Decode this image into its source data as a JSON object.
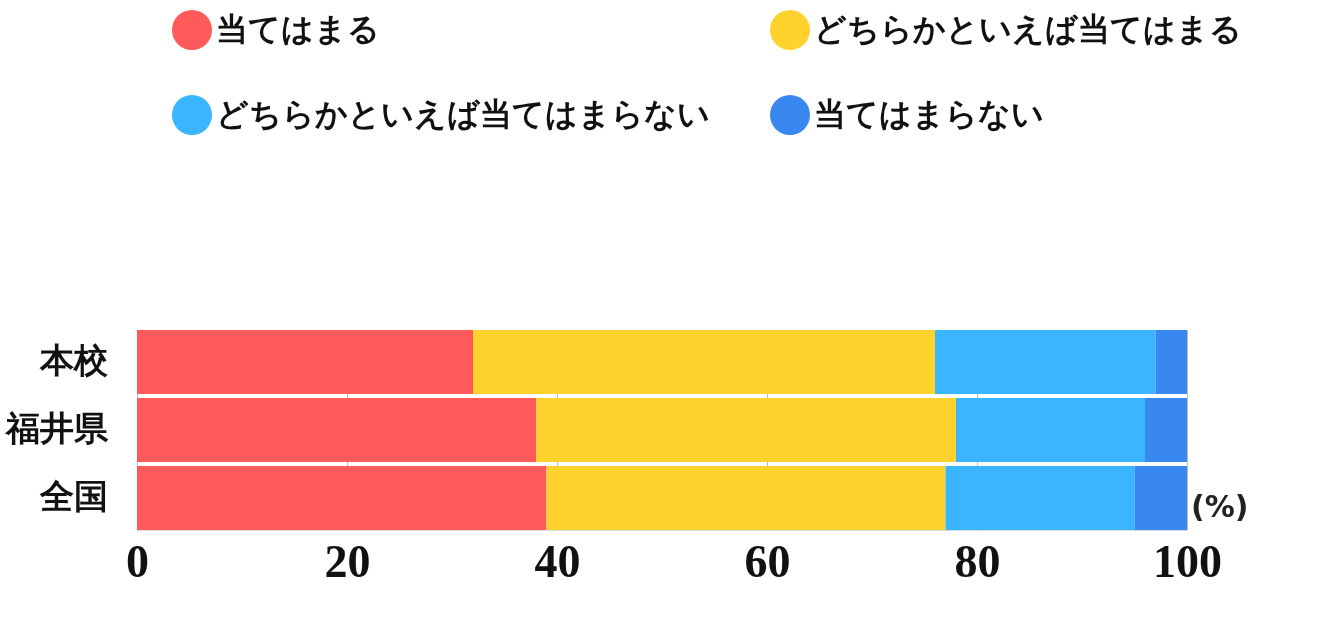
{
  "chart_data": {
    "type": "bar",
    "orientation": "horizontal",
    "stacked": true,
    "categories": [
      "本校",
      "福井県",
      "全国"
    ],
    "series": [
      {
        "name": "当てはまる",
        "color": "#ff5a5a",
        "values": [
          32,
          38,
          39
        ]
      },
      {
        "name": "どちらかといえば当てはまる",
        "color": "#ffd22e",
        "values": [
          44,
          40,
          38
        ]
      },
      {
        "name": "どちらかといえば当てはまらない",
        "color": "#3ab5ff",
        "values": [
          21,
          18,
          18
        ]
      },
      {
        "name": "当てはまらない",
        "color": "#3888f0",
        "values": [
          3,
          4,
          5
        ]
      }
    ],
    "xlim": [
      0,
      100
    ],
    "xticks": [
      0,
      20,
      40,
      60,
      80,
      100
    ],
    "grid": "x",
    "legend": "top",
    "annotations": [
      "(%)"
    ]
  }
}
